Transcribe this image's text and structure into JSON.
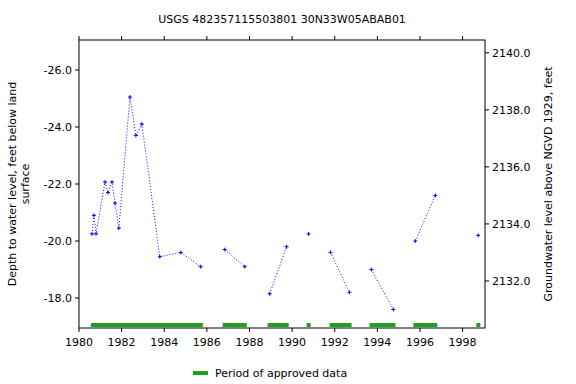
{
  "chart_data": {
    "type": "line",
    "title": "USGS 482357115503801 30N33W05ABAB01",
    "ylabel": [
      "Depth to water level, feet below land",
      "surface"
    ],
    "y2label": "Groundwater level above NGVD 1929, feet",
    "xlim": [
      1980,
      1999.05
    ],
    "xticks": [
      1980,
      1982,
      1984,
      1986,
      1988,
      1990,
      1992,
      1994,
      1996,
      1998
    ],
    "ylim": [
      -16.95,
      -27.05
    ],
    "yticks": [
      {
        "value": -26,
        "label": "-26.0"
      },
      {
        "value": -24,
        "label": "-24.0"
      },
      {
        "value": -22,
        "label": "-22.0"
      },
      {
        "value": -20,
        "label": "-20.0"
      },
      {
        "value": -18,
        "label": "-18.0"
      }
    ],
    "y2lim": [
      2130.35,
      2140.45
    ],
    "y2ticks": [
      {
        "value": 2132,
        "label": "2132.0"
      },
      {
        "value": 2134,
        "label": "2134.0"
      },
      {
        "value": 2136,
        "label": "2136.0"
      },
      {
        "value": 2138,
        "label": "2138.0"
      },
      {
        "value": 2140,
        "label": "2140.0"
      }
    ],
    "grid": false,
    "series": [
      {
        "name": "Depth to water level",
        "color": "#0000ff",
        "marker": "plus",
        "line_style": "dotted",
        "x": [
          1980.61,
          1980.7,
          1980.8,
          1981.22,
          1981.36,
          1981.55,
          1981.69,
          1981.87,
          1982.39,
          1982.67,
          1982.95,
          1983.79,
          1984.78,
          1985.71,
          null,
          1986.84,
          1987.78,
          null,
          1988.95,
          1989.74,
          null,
          1990.77,
          null,
          1991.8,
          1992.69,
          null,
          1993.72,
          1994.75,
          null,
          1995.78,
          1996.72,
          null,
          1998.73
        ],
        "values": [
          -20.25,
          -20.9,
          -20.25,
          -22.07,
          -21.7,
          -22.07,
          -21.33,
          -20.45,
          -25.05,
          -23.7,
          -24.1,
          -19.45,
          -19.6,
          -19.1,
          null,
          -19.7,
          -19.1,
          null,
          -18.15,
          -19.8,
          null,
          -20.25,
          null,
          -19.6,
          -18.2,
          null,
          -19.0,
          -17.6,
          null,
          -20.0,
          -21.6,
          null,
          -20.2
        ]
      }
    ],
    "approved_periods": [
      [
        1980.56,
        1985.81
      ],
      [
        1986.74,
        1987.87
      ],
      [
        1988.85,
        1989.84
      ],
      [
        1990.68,
        1990.87
      ],
      [
        1991.76,
        1992.79
      ],
      [
        1993.63,
        1994.85
      ],
      [
        1995.69,
        1996.81
      ],
      [
        1998.64,
        1998.83
      ]
    ],
    "approved_color": "#1fa01f",
    "approved_label": "Period of approved data",
    "legend": "bottom"
  }
}
